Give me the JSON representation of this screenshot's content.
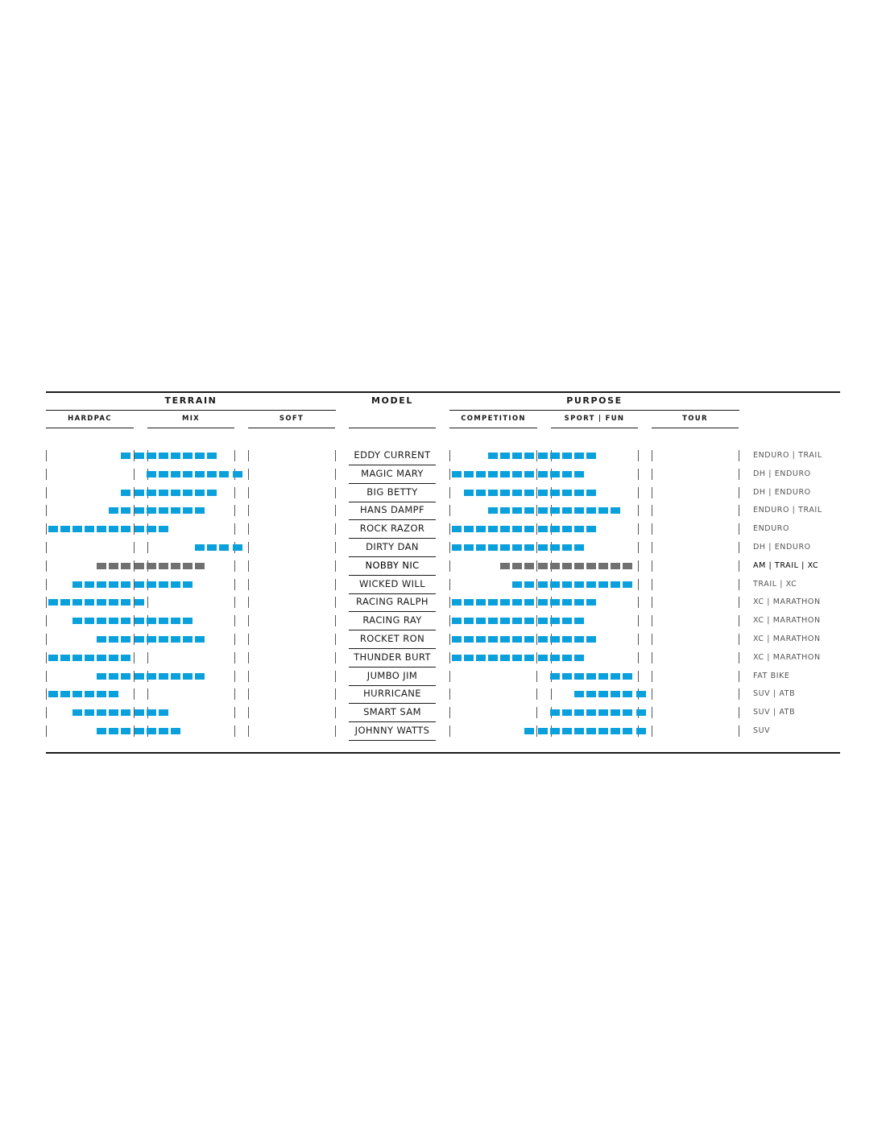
{
  "headers": {
    "terrain": "TERRAIN",
    "model": "MODEL",
    "purpose": "PURPOSE"
  },
  "terrain_cols": [
    "HARDPAC",
    "MIX",
    "SOFT"
  ],
  "purpose_cols": [
    "COMPETITION",
    "SPORT | FUN",
    "TOUR"
  ],
  "colors": {
    "bar": "#0aa0dc",
    "highlight": "#707070",
    "text": "#1a1a1a"
  },
  "chart_data": {
    "type": "table",
    "rows": [
      {
        "model": "EDDY CURRENT",
        "use": "ENDURO | TRAIL",
        "terrain": [
          6,
          14
        ],
        "purpose": [
          3,
          12
        ],
        "highlight": false
      },
      {
        "model": "MAGIC MARY",
        "use": "DH | ENDURO",
        "terrain": [
          8,
          16
        ],
        "purpose": [
          0,
          11
        ],
        "highlight": false
      },
      {
        "model": "BIG BETTY",
        "use": "DH | ENDURO",
        "terrain": [
          6,
          14
        ],
        "purpose": [
          1,
          12
        ],
        "highlight": false
      },
      {
        "model": "HANS DAMPF",
        "use": "ENDURO | TRAIL",
        "terrain": [
          5,
          13
        ],
        "purpose": [
          3,
          14
        ],
        "highlight": false
      },
      {
        "model": "ROCK RAZOR",
        "use": "ENDURO",
        "terrain": [
          0,
          10
        ],
        "purpose": [
          0,
          12
        ],
        "highlight": false
      },
      {
        "model": "DIRTY DAN",
        "use": "DH | ENDURO",
        "terrain": [
          12,
          16
        ],
        "purpose": [
          0,
          11
        ],
        "highlight": false
      },
      {
        "model": "NOBBY NIC",
        "use": "AM | TRAIL | XC",
        "terrain": [
          4,
          13
        ],
        "purpose": [
          4,
          15
        ],
        "highlight": true
      },
      {
        "model": "WICKED WILL",
        "use": "TRAIL | XC",
        "terrain": [
          2,
          12
        ],
        "purpose": [
          5,
          15
        ],
        "highlight": false
      },
      {
        "model": "RACING RALPH",
        "use": "XC | MARATHON",
        "terrain": [
          0,
          8
        ],
        "purpose": [
          0,
          12
        ],
        "highlight": false
      },
      {
        "model": "RACING RAY",
        "use": "XC | MARATHON",
        "terrain": [
          2,
          12
        ],
        "purpose": [
          0,
          11
        ],
        "highlight": false
      },
      {
        "model": "ROCKET RON",
        "use": "XC | MARATHON",
        "terrain": [
          4,
          13
        ],
        "purpose": [
          0,
          12
        ],
        "highlight": false
      },
      {
        "model": "THUNDER BURT",
        "use": "XC | MARATHON",
        "terrain": [
          0,
          7
        ],
        "purpose": [
          0,
          11
        ],
        "highlight": false
      },
      {
        "model": "JUMBO JIM",
        "use": "FAT BIKE",
        "terrain": [
          4,
          13
        ],
        "purpose": [
          8,
          15
        ],
        "highlight": false
      },
      {
        "model": "HURRICANE",
        "use": "SUV | ATB",
        "terrain": [
          0,
          6
        ],
        "purpose": [
          10,
          16
        ],
        "highlight": false
      },
      {
        "model": "SMART SAM",
        "use": "SUV | ATB",
        "terrain": [
          2,
          10
        ],
        "purpose": [
          8,
          16
        ],
        "highlight": false
      },
      {
        "model": "JOHNNY WATTS",
        "use": "SUV",
        "terrain": [
          4,
          11
        ],
        "purpose": [
          6,
          16
        ],
        "highlight": false
      }
    ]
  }
}
